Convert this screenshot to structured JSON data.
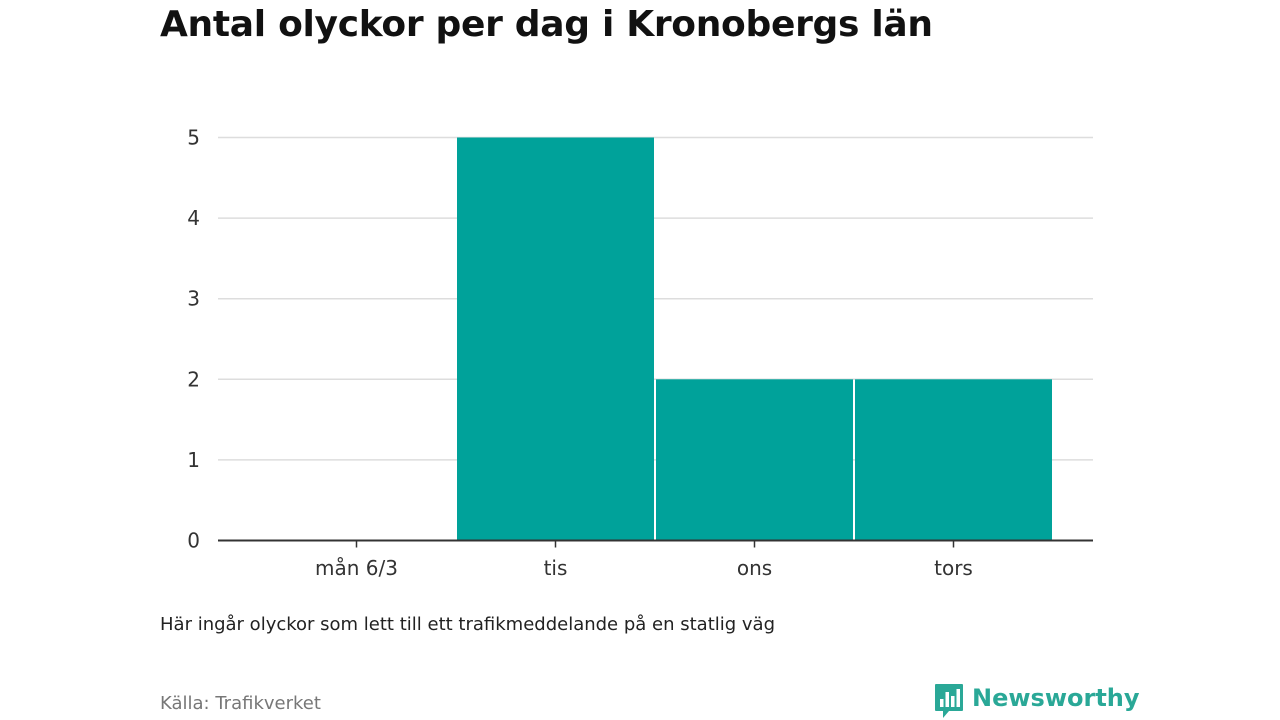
{
  "header": {
    "title": "Antal olyckor per dag i Kronobergs län"
  },
  "footer": {
    "note": "Här ingår olyckor som lett till ett trafikmeddelande på en statlig väg",
    "source": "Källa: Trafikverket",
    "brand": "Newsworthy",
    "brand_icon": "newsworthy-logo-icon"
  },
  "colors": {
    "bar": "#00a29a",
    "brand": "#2aa897",
    "grid": "#dddddd",
    "axis": "#333333"
  },
  "chart_data": {
    "type": "bar",
    "title": "Antal olyckor per dag i Kronobergs län",
    "xlabel": "",
    "ylabel": "",
    "categories": [
      "mån 6/3",
      "tis",
      "ons",
      "tors"
    ],
    "values": [
      0,
      5,
      2,
      2
    ],
    "ylim": [
      0,
      5
    ],
    "yticks": [
      0,
      1,
      2,
      3,
      4,
      5
    ],
    "grid": true,
    "legend": "none"
  }
}
